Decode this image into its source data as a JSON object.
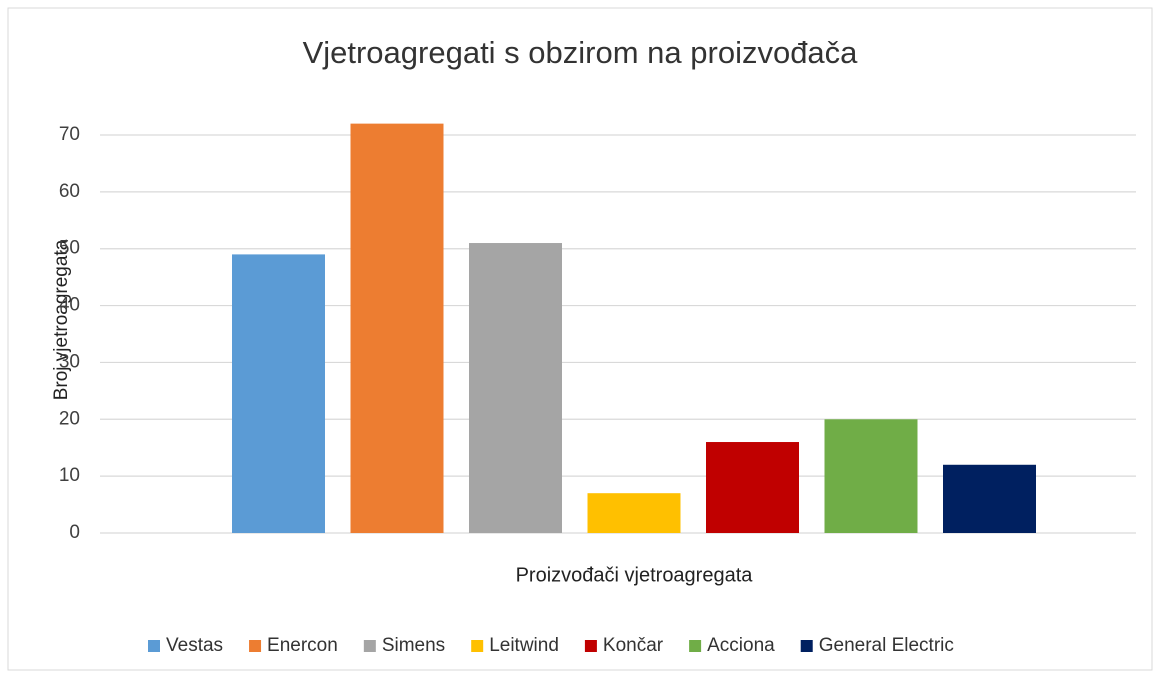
{
  "chart_data": {
    "type": "bar",
    "title": "Vjetroagregati s obzirom na proizvođača",
    "x_label": "Proizvođači vjetroagregata",
    "y_label": "Broj vjetroagregata",
    "categories": [
      null
    ],
    "series": [
      {
        "name": "Vestas",
        "color": "#5b9bd5",
        "values": [
          49
        ]
      },
      {
        "name": "Enercon",
        "color": "#ed7d31",
        "values": [
          72
        ]
      },
      {
        "name": "Simens",
        "color": "#a5a5a5",
        "values": [
          51
        ]
      },
      {
        "name": "Leitwind",
        "color": "#ffc000",
        "values": [
          7
        ]
      },
      {
        "name": "Končar",
        "color": "#c00000",
        "values": [
          16
        ]
      },
      {
        "name": "Acciona",
        "color": "#70ad47",
        "values": [
          20
        ]
      },
      {
        "name": "General Electric",
        "color": "#002060",
        "values": [
          12
        ]
      }
    ],
    "ylim": [
      0,
      72
    ],
    "yticks": [
      0,
      10,
      20,
      30,
      40,
      50,
      60,
      70
    ],
    "grid": true,
    "legend": "bottom"
  }
}
